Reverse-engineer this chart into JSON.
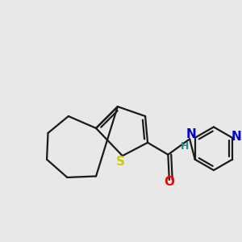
{
  "bg_color": "#e8e8e8",
  "bond_color": "#1a1a1a",
  "bond_width": 1.6,
  "atom_colors": {
    "S": "#cccc00",
    "O": "#ff0000",
    "N_amide": "#0000cc",
    "N_pyridine": "#0000cc",
    "H": "#2a8a8a"
  },
  "font_size_atoms": 11,
  "font_size_H": 9
}
